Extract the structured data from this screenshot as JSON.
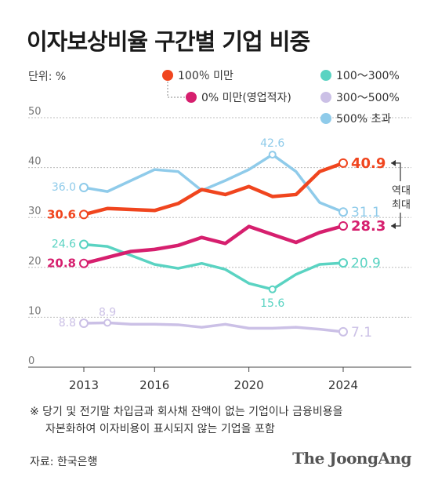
{
  "title": "이자보상비율 구간별 기업 비중",
  "chart_data": {
    "type": "line",
    "unit_label": "단위: %",
    "x": [
      2013,
      2014,
      2015,
      2016,
      2017,
      2018,
      2019,
      2020,
      2021,
      2022,
      2023,
      2024
    ],
    "x_ticks": [
      "2013",
      "2016",
      "2020",
      "2024"
    ],
    "y_ticks": [
      "0",
      "10",
      "20",
      "30",
      "40",
      "50"
    ],
    "ylim": [
      0,
      50
    ],
    "grid": true,
    "legend_placement": "top",
    "series": [
      {
        "name": "100％ 미만",
        "color": "#f0451e",
        "values": [
          30.6,
          31.8,
          31.6,
          31.4,
          32.8,
          35.6,
          34.6,
          36.2,
          34.2,
          34.6,
          39.2,
          40.9
        ],
        "start_label": "30.6",
        "end_label": "40.9"
      },
      {
        "name": "0% 미만(영업적자)",
        "color": "#d61f6e",
        "values": [
          20.8,
          22.0,
          23.2,
          23.6,
          24.4,
          26.0,
          24.8,
          28.2,
          26.6,
          25.0,
          27.0,
          28.3
        ],
        "start_label": "20.8",
        "end_label": "28.3"
      },
      {
        "name": "100～300%",
        "color": "#5ad3c2",
        "values": [
          24.6,
          24.2,
          22.4,
          20.6,
          19.8,
          20.8,
          19.6,
          16.8,
          15.6,
          18.6,
          20.6,
          20.9
        ],
        "start_label": "24.6",
        "end_label": "20.9",
        "min_label": "15.6"
      },
      {
        "name": "300～500%",
        "color": "#cbc0e6",
        "values": [
          8.8,
          8.9,
          8.6,
          8.6,
          8.5,
          8.0,
          8.6,
          7.8,
          7.8,
          8.0,
          7.6,
          7.1
        ],
        "start_label": "8.8",
        "end_label": "7.1",
        "second_label": "8.9"
      },
      {
        "name": "500% 초과",
        "color": "#8fcbea",
        "values": [
          36.0,
          35.2,
          37.4,
          39.6,
          39.2,
          35.4,
          37.4,
          39.6,
          42.6,
          39.2,
          33.0,
          31.1
        ],
        "start_label": "36.0",
        "end_label": "31.1",
        "peak_label": "42.6"
      }
    ],
    "annotation": "역대 최대"
  },
  "footnote": [
    "※ 당기 및 전기말 차입금과 회사채 잔액이 없는 기업이나 금융비용을",
    "자본화하여 이자비용이 표시되지 않는 기업을 포함"
  ],
  "source": "자료: 한국은행",
  "brand": "The JoongAng"
}
